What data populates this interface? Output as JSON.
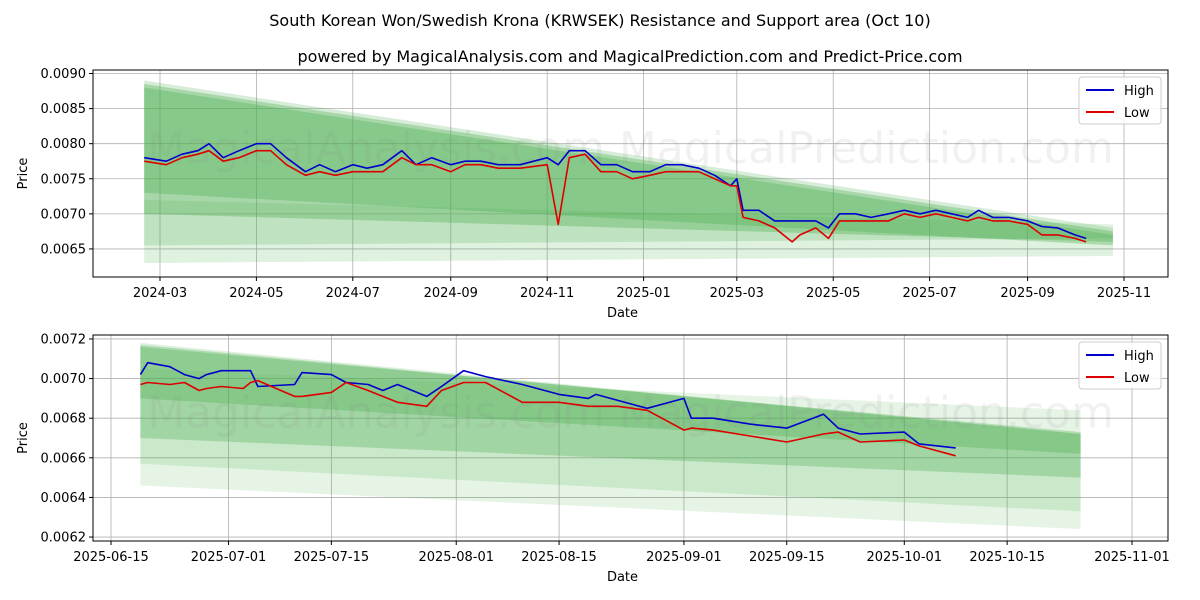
{
  "figure": {
    "title": "South Korean Won/Swedish Krona (KRWSEK) Resistance and Support area (Oct 10)",
    "subtitle": "powered by MagicalAnalysis.com and MagicalPrediction.com and Predict-Price.com",
    "watermark": "MagicalAnalysis.com   MagicalPrediction.com"
  },
  "colors": {
    "high": "#0000cc",
    "low": "#dd0000",
    "band": "#4caf50",
    "grid": "#b0b0b0"
  },
  "chart_data": [
    {
      "type": "line",
      "xlabel": "Date",
      "ylabel": "Price",
      "xticks": [
        "2024-03",
        "2024-05",
        "2024-07",
        "2024-09",
        "2024-11",
        "2025-01",
        "2025-03",
        "2025-05",
        "2025-07",
        "2025-09",
        "2025-11"
      ],
      "yticks": [
        "0.0065",
        "0.0070",
        "0.0075",
        "0.0080",
        "0.0085",
        "0.0090"
      ],
      "ylim": [
        0.0061,
        0.00905
      ],
      "legend": [
        "High",
        "Low"
      ],
      "legend_position": "top-right",
      "bands_note": "green resistance/support bands narrowing from 2024-02-20 to 2025-10-25",
      "series": [
        {
          "name": "High",
          "x": [
            "2024-02-20",
            "2024-03-05",
            "2024-03-15",
            "2024-03-25",
            "2024-04-01",
            "2024-04-10",
            "2024-04-20",
            "2024-05-01",
            "2024-05-10",
            "2024-05-20",
            "2024-06-01",
            "2024-06-10",
            "2024-06-20",
            "2024-07-01",
            "2024-07-10",
            "2024-07-20",
            "2024-08-01",
            "2024-08-10",
            "2024-08-20",
            "2024-09-01",
            "2024-09-10",
            "2024-09-20",
            "2024-10-01",
            "2024-10-15",
            "2024-11-01",
            "2024-11-08",
            "2024-11-15",
            "2024-11-25",
            "2024-12-05",
            "2024-12-15",
            "2024-12-25",
            "2025-01-05",
            "2025-01-15",
            "2025-01-25",
            "2025-02-05",
            "2025-02-15",
            "2025-02-25",
            "2025-03-01",
            "2025-03-05",
            "2025-03-15",
            "2025-03-25",
            "2025-04-05",
            "2025-04-10",
            "2025-04-20",
            "2025-04-28",
            "2025-05-05",
            "2025-05-15",
            "2025-05-25",
            "2025-06-05",
            "2025-06-15",
            "2025-06-25",
            "2025-07-05",
            "2025-07-15",
            "2025-07-25",
            "2025-08-01",
            "2025-08-10",
            "2025-08-20",
            "2025-09-01",
            "2025-09-10",
            "2025-09-20",
            "2025-10-01",
            "2025-10-08"
          ],
          "values": [
            0.0078,
            0.00775,
            0.00785,
            0.0079,
            0.008,
            0.0078,
            0.0079,
            0.008,
            0.008,
            0.0078,
            0.0076,
            0.0077,
            0.0076,
            0.0077,
            0.00765,
            0.0077,
            0.0079,
            0.0077,
            0.0078,
            0.0077,
            0.00775,
            0.00775,
            0.0077,
            0.0077,
            0.0078,
            0.0077,
            0.0079,
            0.0079,
            0.0077,
            0.0077,
            0.0076,
            0.0076,
            0.0077,
            0.0077,
            0.00765,
            0.00755,
            0.0074,
            0.0075,
            0.00705,
            0.00705,
            0.0069,
            0.0069,
            0.0069,
            0.0069,
            0.0068,
            0.007,
            0.007,
            0.00695,
            0.007,
            0.00705,
            0.007,
            0.00705,
            0.007,
            0.00695,
            0.00705,
            0.00695,
            0.00695,
            0.0069,
            0.00682,
            0.0068,
            0.0067,
            0.00665
          ]
        },
        {
          "name": "Low",
          "x": [
            "2024-02-20",
            "2024-03-05",
            "2024-03-15",
            "2024-03-25",
            "2024-04-01",
            "2024-04-10",
            "2024-04-20",
            "2024-05-01",
            "2024-05-10",
            "2024-05-20",
            "2024-06-01",
            "2024-06-10",
            "2024-06-20",
            "2024-07-01",
            "2024-07-10",
            "2024-07-20",
            "2024-08-01",
            "2024-08-10",
            "2024-08-20",
            "2024-09-01",
            "2024-09-10",
            "2024-09-20",
            "2024-10-01",
            "2024-10-15",
            "2024-11-01",
            "2024-11-08",
            "2024-11-15",
            "2024-11-25",
            "2024-12-05",
            "2024-12-15",
            "2024-12-25",
            "2025-01-05",
            "2025-01-15",
            "2025-01-25",
            "2025-02-05",
            "2025-02-15",
            "2025-02-25",
            "2025-03-01",
            "2025-03-05",
            "2025-03-15",
            "2025-03-25",
            "2025-04-05",
            "2025-04-10",
            "2025-04-20",
            "2025-04-28",
            "2025-05-05",
            "2025-05-15",
            "2025-05-25",
            "2025-06-05",
            "2025-06-15",
            "2025-06-25",
            "2025-07-05",
            "2025-07-15",
            "2025-07-25",
            "2025-08-01",
            "2025-08-10",
            "2025-08-20",
            "2025-09-01",
            "2025-09-10",
            "2025-09-20",
            "2025-10-01",
            "2025-10-08"
          ],
          "values": [
            0.00775,
            0.0077,
            0.0078,
            0.00785,
            0.0079,
            0.00775,
            0.0078,
            0.0079,
            0.0079,
            0.0077,
            0.00755,
            0.0076,
            0.00755,
            0.0076,
            0.0076,
            0.0076,
            0.0078,
            0.0077,
            0.0077,
            0.0076,
            0.0077,
            0.0077,
            0.00765,
            0.00765,
            0.0077,
            0.00685,
            0.0078,
            0.00785,
            0.0076,
            0.0076,
            0.0075,
            0.00755,
            0.0076,
            0.0076,
            0.0076,
            0.0075,
            0.0074,
            0.0074,
            0.00695,
            0.0069,
            0.0068,
            0.0066,
            0.0067,
            0.0068,
            0.00665,
            0.0069,
            0.0069,
            0.0069,
            0.0069,
            0.007,
            0.00695,
            0.007,
            0.00695,
            0.0069,
            0.00695,
            0.0069,
            0.0069,
            0.00685,
            0.0067,
            0.0067,
            0.00665,
            0.0066
          ]
        }
      ]
    },
    {
      "type": "line",
      "xlabel": "Date",
      "ylabel": "Price",
      "xticks": [
        "2025-06-15",
        "2025-07-01",
        "2025-07-15",
        "2025-08-01",
        "2025-08-15",
        "2025-09-01",
        "2025-09-15",
        "2025-10-01",
        "2025-10-15",
        "2025-11-01"
      ],
      "yticks": [
        "0.0062",
        "0.0064",
        "0.0066",
        "0.0068",
        "0.0070",
        "0.0072"
      ],
      "ylim": [
        0.00618,
        0.00722
      ],
      "legend": [
        "High",
        "Low"
      ],
      "legend_position": "top-right",
      "bands_note": "green resistance/support bands from 2025-06-19 to 2025-10-25",
      "series": [
        {
          "name": "High",
          "x": [
            "2025-06-19",
            "2025-06-20",
            "2025-06-23",
            "2025-06-25",
            "2025-06-27",
            "2025-06-28",
            "2025-06-30",
            "2025-07-03",
            "2025-07-04",
            "2025-07-05",
            "2025-07-10",
            "2025-07-11",
            "2025-07-15",
            "2025-07-17",
            "2025-07-20",
            "2025-07-22",
            "2025-07-24",
            "2025-07-28",
            "2025-07-30",
            "2025-08-02",
            "2025-08-05",
            "2025-08-10",
            "2025-08-15",
            "2025-08-19",
            "2025-08-20",
            "2025-08-23",
            "2025-08-27",
            "2025-09-01",
            "2025-09-02",
            "2025-09-05",
            "2025-09-10",
            "2025-09-15",
            "2025-09-20",
            "2025-09-22",
            "2025-09-25",
            "2025-10-01",
            "2025-10-03",
            "2025-10-08"
          ],
          "values": [
            0.00702,
            0.00708,
            0.00706,
            0.00702,
            0.007,
            0.00702,
            0.00704,
            0.00704,
            0.00704,
            0.00696,
            0.00697,
            0.00703,
            0.00702,
            0.00698,
            0.00697,
            0.00694,
            0.00697,
            0.00691,
            0.00696,
            0.00704,
            0.00701,
            0.00697,
            0.00692,
            0.0069,
            0.00692,
            0.00689,
            0.00685,
            0.0069,
            0.0068,
            0.0068,
            0.00677,
            0.00675,
            0.00682,
            0.00675,
            0.00672,
            0.00673,
            0.00667,
            0.00665
          ]
        },
        {
          "name": "Low",
          "x": [
            "2025-06-19",
            "2025-06-20",
            "2025-06-23",
            "2025-06-25",
            "2025-06-27",
            "2025-06-28",
            "2025-06-30",
            "2025-07-03",
            "2025-07-04",
            "2025-07-05",
            "2025-07-10",
            "2025-07-11",
            "2025-07-15",
            "2025-07-17",
            "2025-07-20",
            "2025-07-22",
            "2025-07-24",
            "2025-07-28",
            "2025-07-30",
            "2025-08-02",
            "2025-08-05",
            "2025-08-10",
            "2025-08-15",
            "2025-08-19",
            "2025-08-20",
            "2025-08-23",
            "2025-08-27",
            "2025-09-01",
            "2025-09-02",
            "2025-09-05",
            "2025-09-10",
            "2025-09-15",
            "2025-09-20",
            "2025-09-22",
            "2025-09-25",
            "2025-10-01",
            "2025-10-03",
            "2025-10-08"
          ],
          "values": [
            0.00697,
            0.00698,
            0.00697,
            0.00698,
            0.00694,
            0.00695,
            0.00696,
            0.00695,
            0.00698,
            0.00699,
            0.00691,
            0.00691,
            0.00693,
            0.00698,
            0.00694,
            0.00691,
            0.00688,
            0.00686,
            0.00694,
            0.00698,
            0.00698,
            0.00688,
            0.00688,
            0.00686,
            0.00686,
            0.00686,
            0.00684,
            0.00674,
            0.00675,
            0.00674,
            0.00671,
            0.00668,
            0.00672,
            0.00673,
            0.00668,
            0.00669,
            0.00666,
            0.00661
          ]
        }
      ]
    }
  ]
}
